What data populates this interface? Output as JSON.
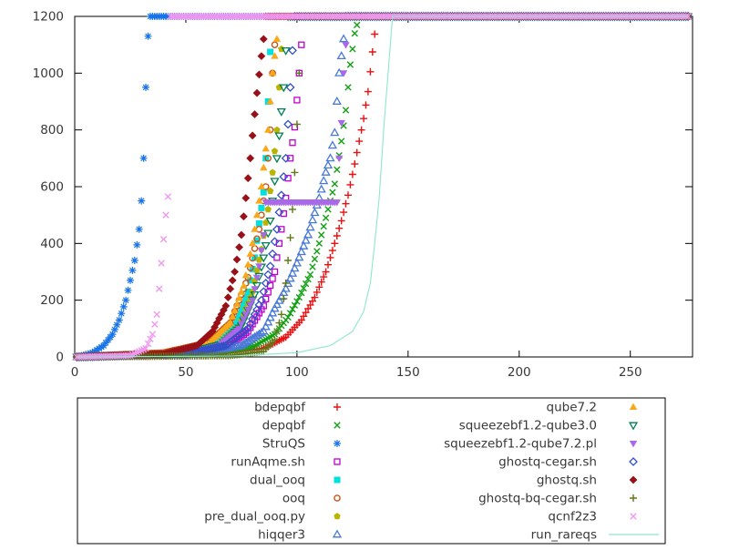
{
  "chart_data": {
    "type": "scatter",
    "title": "",
    "xlabel": "",
    "ylabel": "",
    "xlim": [
      0,
      278
    ],
    "ylim": [
      0,
      1200
    ],
    "x_ticks": [
      0,
      50,
      100,
      150,
      200,
      250
    ],
    "y_ticks": [
      0,
      200,
      400,
      600,
      800,
      1000,
      1200
    ],
    "grid": false,
    "legend_position": "bottom",
    "timeout_cap": 1200,
    "total_instances": 276,
    "series": [
      {
        "name": "bdepqbf",
        "color": "#e81010",
        "marker": "plus",
        "solved": 135,
        "keypoints": [
          [
            1,
            0
          ],
          [
            60,
            5
          ],
          [
            85,
            30
          ],
          [
            95,
            70
          ],
          [
            102,
            130
          ],
          [
            108,
            210
          ],
          [
            113,
            300
          ],
          [
            117,
            400
          ],
          [
            120,
            480
          ],
          [
            123,
            570
          ],
          [
            126,
            680
          ],
          [
            128,
            760
          ],
          [
            130,
            840
          ],
          [
            132,
            935
          ],
          [
            134,
            1075
          ],
          [
            136,
            1200
          ]
        ]
      },
      {
        "name": "depqbf",
        "color": "#12a012",
        "marker": "cross",
        "solved": 127,
        "keypoints": [
          [
            1,
            0
          ],
          [
            60,
            8
          ],
          [
            80,
            35
          ],
          [
            90,
            80
          ],
          [
            96,
            140
          ],
          [
            101,
            210
          ],
          [
            106,
            290
          ],
          [
            110,
            400
          ],
          [
            114,
            520
          ],
          [
            117,
            610
          ],
          [
            120,
            760
          ],
          [
            122,
            870
          ],
          [
            124,
            1030
          ],
          [
            126,
            1140
          ],
          [
            128,
            1200
          ]
        ]
      },
      {
        "name": "StruQS",
        "color": "#1874e8",
        "marker": "asterisk",
        "solved": 33,
        "keypoints": [
          [
            1,
            0
          ],
          [
            8,
            15
          ],
          [
            13,
            40
          ],
          [
            17,
            80
          ],
          [
            20,
            130
          ],
          [
            23,
            200
          ],
          [
            25,
            270
          ],
          [
            27,
            340
          ],
          [
            29,
            450
          ],
          [
            30,
            550
          ],
          [
            31,
            700
          ],
          [
            32,
            950
          ],
          [
            33,
            1130
          ],
          [
            34,
            1200
          ]
        ]
      },
      {
        "name": "runAqme.sh",
        "color": "#c000d0",
        "marker": "square-open",
        "solved": 102,
        "keypoints": [
          [
            1,
            0
          ],
          [
            50,
            8
          ],
          [
            68,
            35
          ],
          [
            78,
            90
          ],
          [
            85,
            180
          ],
          [
            90,
            300
          ],
          [
            93,
            450
          ],
          [
            95,
            560
          ],
          [
            97,
            700
          ],
          [
            99,
            810
          ],
          [
            101,
            1000
          ],
          [
            103,
            1200
          ]
        ]
      },
      {
        "name": "dual_ooq",
        "color": "#00e0e0",
        "marker": "square-filled",
        "solved": 88,
        "keypoints": [
          [
            1,
            0
          ],
          [
            45,
            10
          ],
          [
            62,
            40
          ],
          [
            72,
            110
          ],
          [
            78,
            230
          ],
          [
            81,
            350
          ],
          [
            83,
            470
          ],
          [
            85,
            580
          ],
          [
            86,
            700
          ],
          [
            87,
            900
          ],
          [
            88,
            1075
          ],
          [
            89,
            1200
          ]
        ]
      },
      {
        "name": "ooq",
        "color": "#c85010",
        "marker": "circle-open",
        "solved": 90,
        "keypoints": [
          [
            1,
            2
          ],
          [
            40,
            15
          ],
          [
            60,
            50
          ],
          [
            70,
            120
          ],
          [
            78,
            280
          ],
          [
            83,
            450
          ],
          [
            86,
            600
          ],
          [
            88,
            800
          ],
          [
            89,
            1000
          ],
          [
            90,
            1100
          ],
          [
            91,
            1200
          ]
        ]
      },
      {
        "name": "pre_dual_ooq.py",
        "color": "#b8b400",
        "marker": "pentagon-filled",
        "solved": 93,
        "keypoints": [
          [
            1,
            0
          ],
          [
            48,
            12
          ],
          [
            65,
            45
          ],
          [
            74,
            110
          ],
          [
            80,
            230
          ],
          [
            84,
            380
          ],
          [
            87,
            520
          ],
          [
            89,
            650
          ],
          [
            91,
            800
          ],
          [
            92,
            950
          ],
          [
            93,
            1085
          ],
          [
            94,
            1200
          ]
        ]
      },
      {
        "name": "hiqqer3",
        "color": "#4878d8",
        "marker": "triangle-up-open",
        "solved": 121,
        "keypoints": [
          [
            1,
            0
          ],
          [
            55,
            8
          ],
          [
            75,
            40
          ],
          [
            85,
            90
          ],
          [
            90,
            170
          ],
          [
            95,
            240
          ],
          [
            100,
            330
          ],
          [
            105,
            430
          ],
          [
            110,
            560
          ],
          [
            113,
            650
          ],
          [
            115,
            700
          ],
          [
            117,
            790
          ],
          [
            118,
            900
          ],
          [
            119,
            1000
          ],
          [
            120,
            1060
          ],
          [
            121,
            1120
          ],
          [
            122,
            1200
          ]
        ]
      },
      {
        "name": "qube7.2",
        "color": "#f8a818",
        "marker": "triangle-up-filled",
        "solved": 91,
        "keypoints": [
          [
            1,
            0
          ],
          [
            45,
            10
          ],
          [
            60,
            45
          ],
          [
            70,
            120
          ],
          [
            76,
            250
          ],
          [
            80,
            400
          ],
          [
            84,
            600
          ],
          [
            87,
            800
          ],
          [
            89,
            1000
          ],
          [
            91,
            1120
          ],
          [
            92,
            1200
          ]
        ]
      },
      {
        "name": "squeezebf1.2-qube3.0",
        "color": "#008050",
        "marker": "triangle-down-open",
        "solved": 95,
        "keypoints": [
          [
            1,
            0
          ],
          [
            50,
            12
          ],
          [
            66,
            45
          ],
          [
            75,
            110
          ],
          [
            81,
            220
          ],
          [
            85,
            350
          ],
          [
            88,
            480
          ],
          [
            90,
            620
          ],
          [
            92,
            780
          ],
          [
            94,
            950
          ],
          [
            95,
            1080
          ],
          [
            96,
            1200
          ]
        ]
      },
      {
        "name": "squeezebf1.2-qube7.2.pl",
        "color": "#a868e8",
        "marker": "triangle-down-filled",
        "solved": 122,
        "keypoints": [
          [
            1,
            0
          ],
          [
            50,
            10
          ],
          [
            65,
            40
          ],
          [
            74,
            100
          ],
          [
            80,
            200
          ],
          [
            83,
            320
          ],
          [
            85,
            430
          ],
          [
            86,
            545
          ],
          [
            118,
            545
          ],
          [
            119,
            700
          ],
          [
            120,
            825
          ],
          [
            121,
            1000
          ],
          [
            122,
            1100
          ],
          [
            123,
            1200
          ]
        ]
      },
      {
        "name": "ghostq-cegar.sh",
        "color": "#3050c8",
        "marker": "diamond-open",
        "solved": 98,
        "keypoints": [
          [
            1,
            0
          ],
          [
            50,
            10
          ],
          [
            68,
            40
          ],
          [
            78,
            100
          ],
          [
            84,
            200
          ],
          [
            88,
            320
          ],
          [
            91,
            450
          ],
          [
            93,
            570
          ],
          [
            95,
            700
          ],
          [
            96,
            820
          ],
          [
            97,
            950
          ],
          [
            98,
            1080
          ],
          [
            99,
            1200
          ]
        ]
      },
      {
        "name": "ghostq.sh",
        "color": "#981018",
        "marker": "diamond-filled",
        "solved": 85,
        "keypoints": [
          [
            1,
            0
          ],
          [
            40,
            10
          ],
          [
            55,
            40
          ],
          [
            62,
            90
          ],
          [
            68,
            180
          ],
          [
            72,
            300
          ],
          [
            75,
            430
          ],
          [
            77,
            560
          ],
          [
            79,
            700
          ],
          [
            80,
            780
          ],
          [
            82,
            930
          ],
          [
            84,
            1060
          ],
          [
            85,
            1120
          ],
          [
            86,
            1200
          ]
        ]
      },
      {
        "name": "ghostq-bq-cegar.sh",
        "color": "#607818",
        "marker": "plus",
        "solved": 101,
        "keypoints": [
          [
            1,
            0
          ],
          [
            70,
            5
          ],
          [
            85,
            20
          ],
          [
            90,
            60
          ],
          [
            93,
            150
          ],
          [
            95,
            260
          ],
          [
            97,
            420
          ],
          [
            98,
            520
          ],
          [
            99,
            650
          ],
          [
            100,
            820
          ],
          [
            101,
            1000
          ],
          [
            102,
            1200
          ]
        ]
      },
      {
        "name": "qcnf2z3",
        "color": "#f098f0",
        "marker": "cross",
        "solved": 42,
        "keypoints": [
          [
            1,
            0
          ],
          [
            25,
            5
          ],
          [
            32,
            30
          ],
          [
            35,
            80
          ],
          [
            37,
            150
          ],
          [
            39,
            330
          ],
          [
            41,
            500
          ],
          [
            42,
            565
          ],
          [
            43,
            1200
          ]
        ]
      },
      {
        "name": "run_rareqs",
        "color": "#8ce8cc",
        "marker": "line",
        "solved": 142,
        "keypoints": [
          [
            1,
            0
          ],
          [
            70,
            3
          ],
          [
            100,
            15
          ],
          [
            115,
            40
          ],
          [
            125,
            90
          ],
          [
            130,
            160
          ],
          [
            133,
            260
          ],
          [
            135,
            400
          ],
          [
            137,
            560
          ],
          [
            139,
            800
          ],
          [
            141,
            1000
          ],
          [
            142,
            1100
          ],
          [
            143,
            1200
          ]
        ]
      }
    ]
  },
  "axis_labels": {
    "x_tick_labels": [
      "0",
      "50",
      "100",
      "150",
      "200",
      "250"
    ],
    "y_tick_labels": [
      "0",
      "200",
      "400",
      "600",
      "800",
      "1000",
      "1200"
    ]
  },
  "text_color": "#383838"
}
